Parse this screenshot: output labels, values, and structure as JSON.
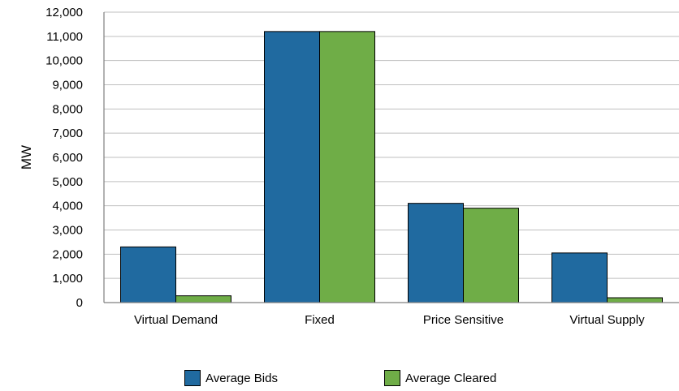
{
  "chart_data": {
    "type": "bar",
    "title": "",
    "xlabel": "",
    "ylabel": "MW",
    "ylim": [
      0,
      12000
    ],
    "yticks": [
      0,
      1000,
      2000,
      3000,
      4000,
      5000,
      6000,
      7000,
      8000,
      9000,
      10000,
      11000,
      12000
    ],
    "ytick_labels": [
      "0",
      "1,000",
      "2,000",
      "3,000",
      "4,000",
      "5,000",
      "6,000",
      "7,000",
      "8,000",
      "9,000",
      "10,000",
      "11,000",
      "12,000"
    ],
    "categories": [
      "Virtual Demand",
      "Fixed",
      "Price Sensitive",
      "Virtual Supply"
    ],
    "series": [
      {
        "name": "Average Bids",
        "color": "#206aa0",
        "values": [
          2300,
          11200,
          4100,
          2050
        ]
      },
      {
        "name": "Average Cleared",
        "color": "#6fad47",
        "values": [
          280,
          11200,
          3900,
          200
        ]
      }
    ],
    "grid": true,
    "legend_position": "bottom"
  }
}
